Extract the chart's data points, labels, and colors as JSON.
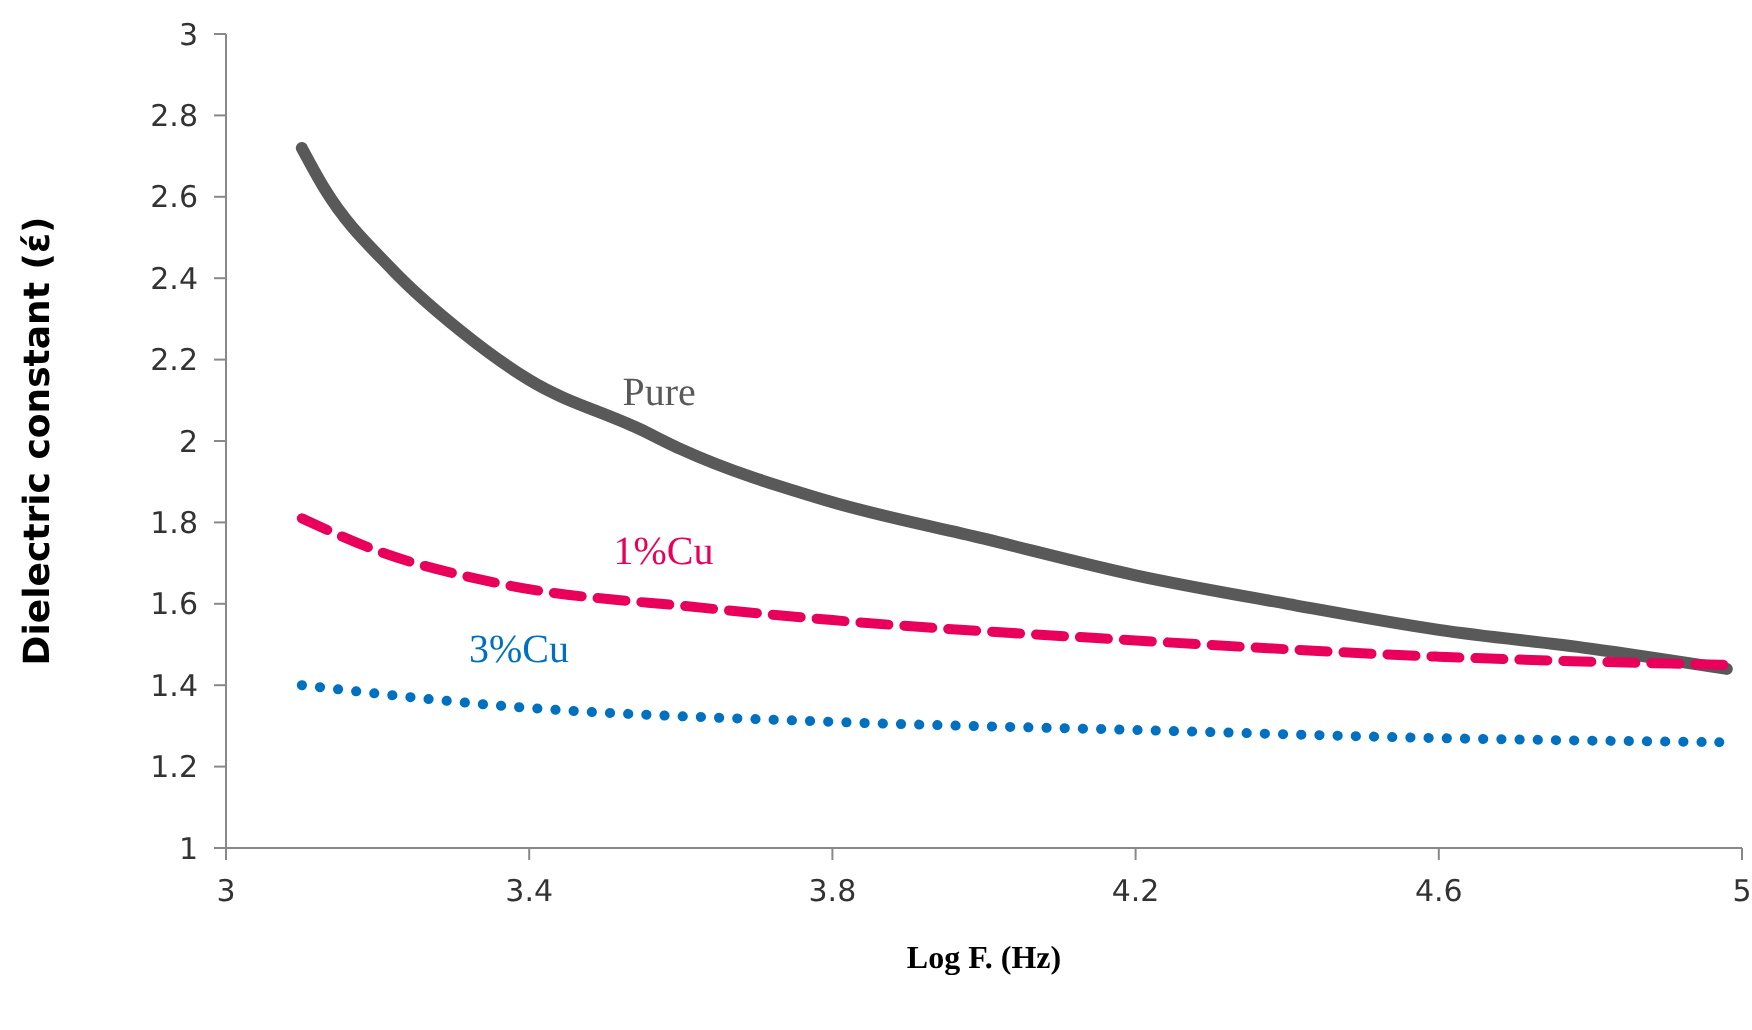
{
  "chart_data": {
    "type": "line",
    "xlabel": "Log F. (Hz)",
    "ylabel": "Dielectric constant (έ)",
    "xlim": [
      3,
      5
    ],
    "xticks": [
      3,
      3.4,
      3.8,
      4.2,
      4.6,
      5
    ],
    "ylim": [
      1,
      3
    ],
    "yticks": [
      1,
      1.2,
      1.4,
      1.6,
      1.8,
      2,
      2.2,
      2.4,
      2.6,
      2.8,
      3
    ],
    "grid": false,
    "legend": false,
    "marker": "none",
    "series": [
      {
        "name": "Pure",
        "color": "#595959",
        "line_style": "solid",
        "x": [
          3.1,
          3.13,
          3.22,
          3.31,
          3.4,
          3.545,
          3.6,
          3.79,
          4.0,
          4.2,
          4.4,
          4.6,
          4.8,
          4.98
        ],
        "values": [
          2.72,
          2.62,
          2.42,
          2.27,
          2.15,
          2.03,
          1.98,
          1.855,
          1.76,
          1.67,
          1.6,
          1.536,
          1.49,
          1.44
        ]
      },
      {
        "name": "1%Cu",
        "color": "#e8005a",
        "line_style": "dashed",
        "x": [
          3.1,
          3.2,
          3.36,
          3.63,
          3.8,
          4.2,
          4.6,
          4.98
        ],
        "values": [
          1.81,
          1.73,
          1.65,
          1.59,
          1.56,
          1.51,
          1.47,
          1.45
        ]
      },
      {
        "name": "3%Cu",
        "color": "#0070c0",
        "line_style": "dotted",
        "x": [
          3.1,
          3.36,
          3.8,
          4.2,
          4.6,
          4.97
        ],
        "values": [
          1.4,
          1.35,
          1.31,
          1.29,
          1.27,
          1.26
        ]
      }
    ]
  }
}
